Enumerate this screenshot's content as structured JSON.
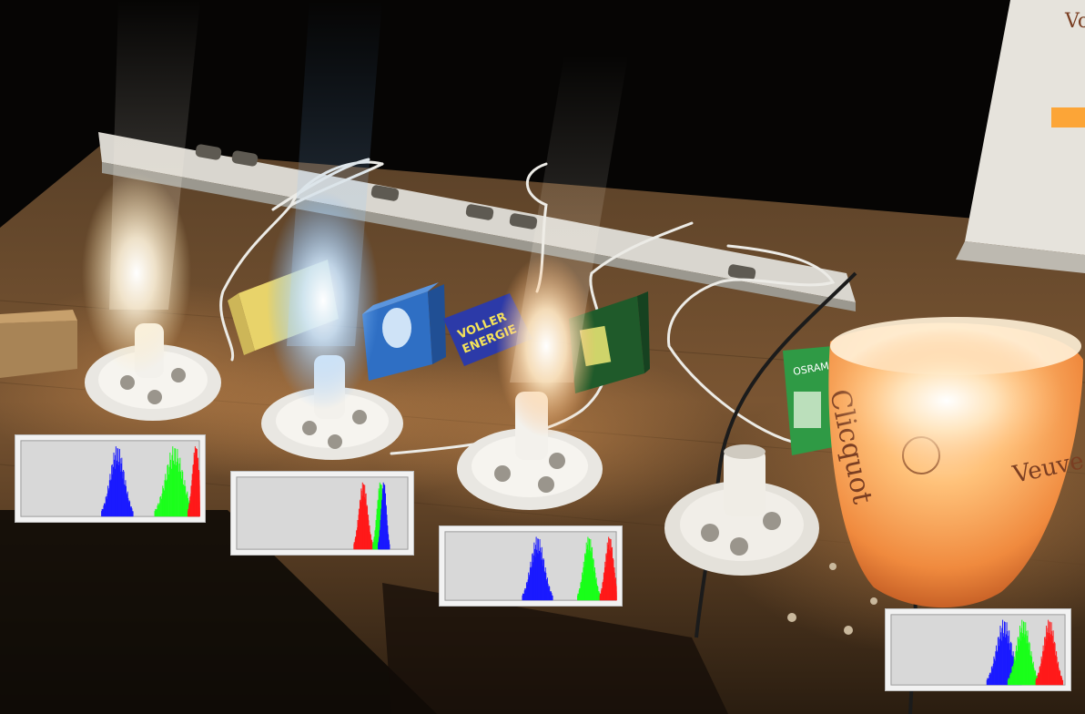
{
  "scene": {
    "description_free": true,
    "lamps": [
      "lamp-1",
      "lamp-2",
      "lamp-3",
      "lamp-4",
      "lamp-5"
    ]
  },
  "labels": {
    "bottle_brand_1": "Clicquot",
    "bottle_brand_2": "Veuve",
    "box_text_1": "VOLLER",
    "box_text_2": "ENERGIE",
    "green_box_text": "OSRAM",
    "monitor_text": "Vo"
  },
  "colors": {
    "red": "#ff1a1a",
    "green": "#1aff1a",
    "blue": "#1a1aff",
    "panel_bg": "#d8d8d8"
  },
  "histograms": [
    {
      "name": "histogram-1",
      "peaks": [
        {
          "channel": "blue",
          "center": 0.54,
          "spread": 0.04
        },
        {
          "channel": "green",
          "center": 0.86,
          "spread": 0.05
        },
        {
          "channel": "red",
          "center": 0.98,
          "spread": 0.02
        }
      ]
    },
    {
      "name": "histogram-2",
      "peaks": [
        {
          "channel": "red",
          "center": 0.74,
          "spread": 0.025
        },
        {
          "channel": "green",
          "center": 0.84,
          "spread": 0.02
        },
        {
          "channel": "blue",
          "center": 0.86,
          "spread": 0.015
        }
      ]
    },
    {
      "name": "histogram-3",
      "peaks": [
        {
          "channel": "blue",
          "center": 0.54,
          "spread": 0.04
        },
        {
          "channel": "green",
          "center": 0.84,
          "spread": 0.03
        },
        {
          "channel": "red",
          "center": 0.96,
          "spread": 0.025
        }
      ]
    },
    {
      "name": "histogram-4",
      "peaks": [
        {
          "channel": "blue",
          "center": 0.65,
          "spread": 0.045
        },
        {
          "channel": "green",
          "center": 0.76,
          "spread": 0.04
        },
        {
          "channel": "red",
          "center": 0.91,
          "spread": 0.035
        }
      ]
    }
  ]
}
